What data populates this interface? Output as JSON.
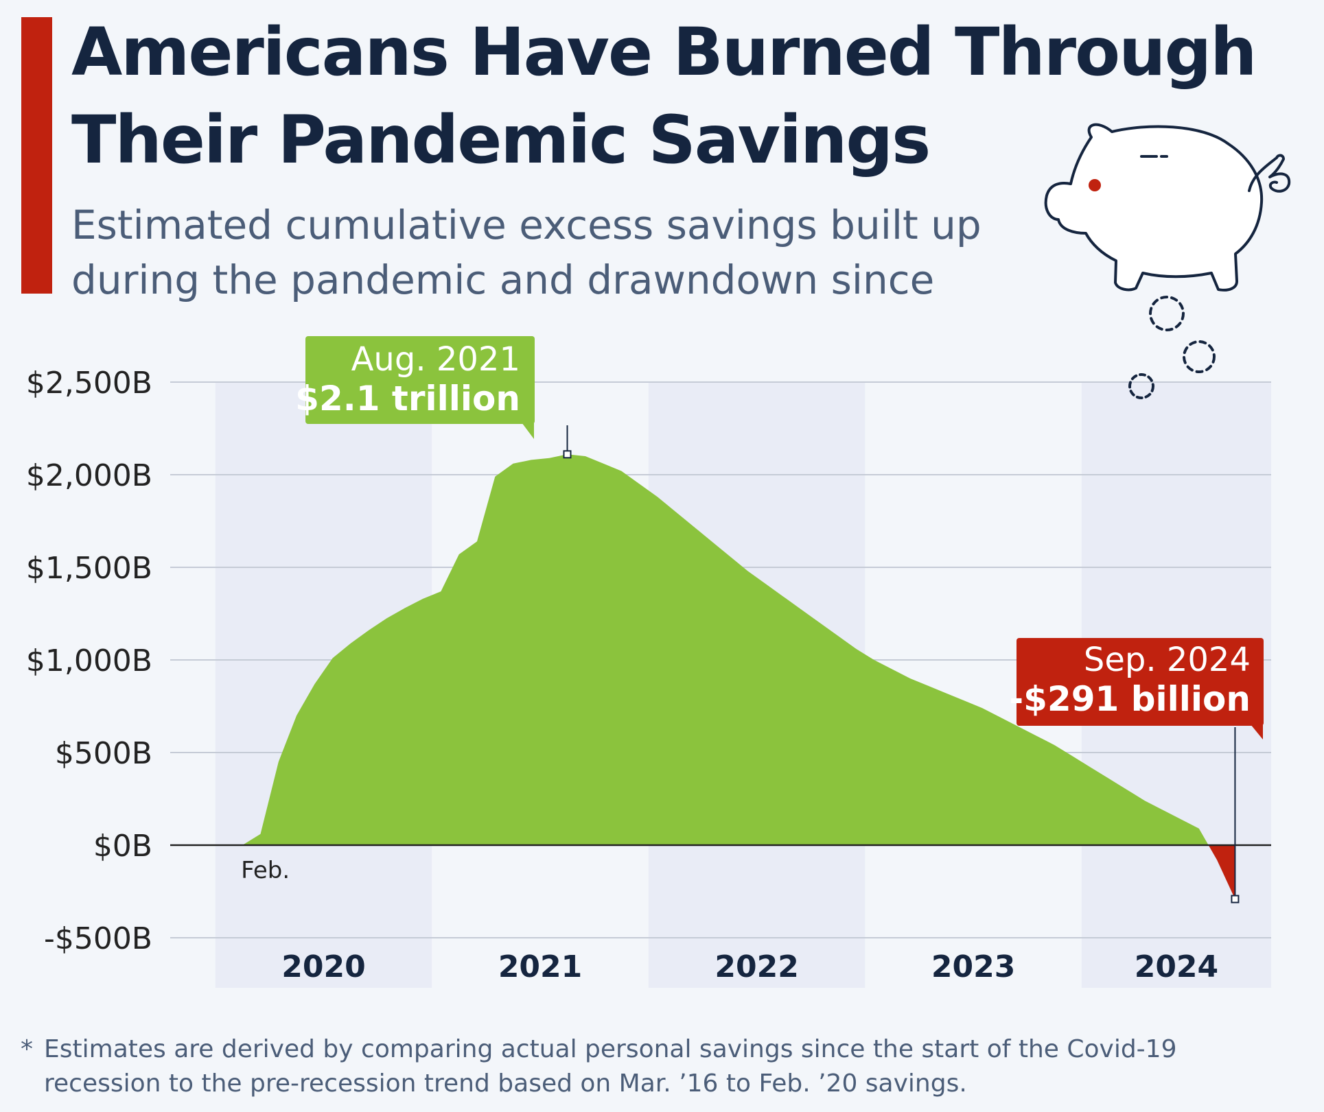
{
  "title": "Americans Have Burned Through Their Pandemic Savings",
  "subtitle": "Estimated cumulative excess savings built up during the pandemic and drawndown since",
  "footnote": {
    "marker": "*",
    "text": "Estimates are derived by comparing actual personal savings since the start of the Covid-19 recession to the pre-recession trend based on Mar. ’16 to Feb. ’20 savings."
  },
  "colors": {
    "accent": "#c0220f",
    "positive": "#8bc33d",
    "negative": "#c0220f",
    "title": "#15253f",
    "subtitle": "#4b5d78"
  },
  "icon": "piggy-bank-icon",
  "chart_data": {
    "type": "area",
    "title": "",
    "xlabel": "",
    "ylabel": "",
    "unit": "billion USD",
    "ylim": [
      -500,
      2500
    ],
    "yticks": [
      2500,
      2000,
      1500,
      1000,
      500,
      0,
      -500
    ],
    "ytick_labels": [
      "$2,500B",
      "$2,000B",
      "$1,500B",
      "$1,000B",
      "$500B",
      "$0B",
      "-$500B"
    ],
    "xlim": [
      "2019-10",
      "2024-11"
    ],
    "year_labels": [
      "2020",
      "2021",
      "2022",
      "2023",
      "2024"
    ],
    "start_label": "Feb.",
    "grid": true,
    "x": [
      "2020-02",
      "2020-03",
      "2020-04",
      "2020-05",
      "2020-06",
      "2020-07",
      "2020-08",
      "2020-09",
      "2020-10",
      "2020-11",
      "2020-12",
      "2021-01",
      "2021-02",
      "2021-03",
      "2021-04",
      "2021-05",
      "2021-06",
      "2021-07",
      "2021-08",
      "2021-09",
      "2021-10",
      "2021-11",
      "2021-12",
      "2022-01",
      "2022-02",
      "2022-03",
      "2022-04",
      "2022-05",
      "2022-06",
      "2022-07",
      "2022-08",
      "2022-09",
      "2022-10",
      "2022-11",
      "2022-12",
      "2023-01",
      "2023-02",
      "2023-03",
      "2023-04",
      "2023-05",
      "2023-06",
      "2023-07",
      "2023-08",
      "2023-09",
      "2023-10",
      "2023-11",
      "2023-12",
      "2024-01",
      "2024-02",
      "2024-03",
      "2024-04",
      "2024-05",
      "2024-06",
      "2024-07",
      "2024-08",
      "2024-09"
    ],
    "values": [
      0,
      60,
      450,
      700,
      870,
      1010,
      1090,
      1160,
      1225,
      1280,
      1330,
      1370,
      1570,
      1640,
      1990,
      2060,
      2080,
      2090,
      2110,
      2100,
      2060,
      2020,
      1950,
      1880,
      1800,
      1720,
      1640,
      1560,
      1480,
      1410,
      1340,
      1270,
      1200,
      1130,
      1060,
      1000,
      950,
      900,
      860,
      820,
      780,
      740,
      690,
      640,
      590,
      540,
      480,
      420,
      360,
      300,
      240,
      190,
      140,
      90,
      -80,
      -291
    ],
    "annotations": [
      {
        "x": "2021-08",
        "y": 2110,
        "label_top": "Aug. 2021",
        "label_bottom": "$2.1 trillion",
        "color": "#8bc33d"
      },
      {
        "x": "2024-09",
        "y": -291,
        "label_top": "Sep. 2024",
        "label_bottom": "-$291 billion",
        "color": "#c0220f"
      }
    ]
  }
}
